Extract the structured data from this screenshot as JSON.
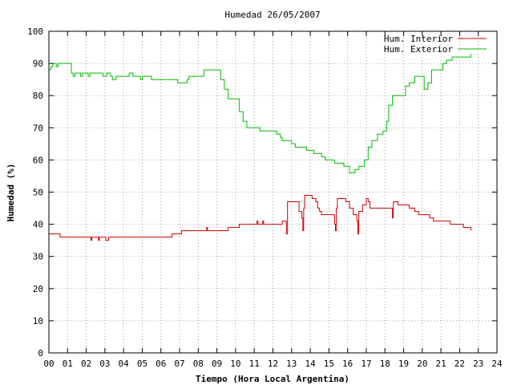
{
  "chart_data": {
    "type": "line",
    "title": "Humedad 26/05/2007",
    "xlabel": "Tiempo (Hora Local Argentina)",
    "ylabel": "Humedad (%)",
    "xlim": [
      0,
      24
    ],
    "ylim": [
      0,
      100
    ],
    "x_ticks": [
      "00",
      "01",
      "02",
      "03",
      "04",
      "05",
      "06",
      "07",
      "08",
      "09",
      "10",
      "11",
      "12",
      "13",
      "14",
      "15",
      "16",
      "17",
      "18",
      "19",
      "20",
      "21",
      "22",
      "23",
      "24"
    ],
    "y_ticks": [
      "0",
      "10",
      "20",
      "30",
      "40",
      "50",
      "60",
      "70",
      "80",
      "90",
      "100"
    ],
    "grid": true,
    "legend_position": "top-right",
    "colors": {
      "interior": "#cc0000",
      "exterior": "#00bb00"
    },
    "series": [
      {
        "name": "Hum. Interior",
        "points": [
          [
            0,
            37
          ],
          [
            0.55,
            37
          ],
          [
            0.6,
            36
          ],
          [
            2.2,
            36
          ],
          [
            2.25,
            35
          ],
          [
            2.3,
            36
          ],
          [
            2.6,
            36
          ],
          [
            2.65,
            35
          ],
          [
            2.7,
            36
          ],
          [
            3.0,
            36
          ],
          [
            3.05,
            35
          ],
          [
            3.15,
            35
          ],
          [
            3.2,
            36
          ],
          [
            6.5,
            36
          ],
          [
            6.6,
            37
          ],
          [
            7.0,
            37
          ],
          [
            7.1,
            38
          ],
          [
            8.4,
            38
          ],
          [
            8.45,
            39
          ],
          [
            8.5,
            38
          ],
          [
            9.5,
            38
          ],
          [
            9.6,
            39
          ],
          [
            10.1,
            39
          ],
          [
            10.2,
            40
          ],
          [
            11.1,
            40
          ],
          [
            11.15,
            41
          ],
          [
            11.2,
            40
          ],
          [
            11.4,
            40
          ],
          [
            11.45,
            41
          ],
          [
            11.5,
            40
          ],
          [
            12.4,
            40
          ],
          [
            12.5,
            41
          ],
          [
            12.7,
            41
          ],
          [
            12.72,
            37
          ],
          [
            12.75,
            37
          ],
          [
            12.78,
            47
          ],
          [
            13.2,
            47
          ],
          [
            13.4,
            44
          ],
          [
            13.55,
            42
          ],
          [
            13.6,
            38
          ],
          [
            13.65,
            45
          ],
          [
            13.7,
            49
          ],
          [
            14.1,
            48
          ],
          [
            14.3,
            47
          ],
          [
            14.4,
            45
          ],
          [
            14.5,
            44
          ],
          [
            14.6,
            43
          ],
          [
            15.25,
            43
          ],
          [
            15.3,
            40
          ],
          [
            15.35,
            38
          ],
          [
            15.4,
            45
          ],
          [
            15.45,
            48
          ],
          [
            15.9,
            47
          ],
          [
            16.1,
            45
          ],
          [
            16.3,
            43
          ],
          [
            16.5,
            41
          ],
          [
            16.55,
            37
          ],
          [
            16.6,
            44
          ],
          [
            16.8,
            46
          ],
          [
            17.0,
            48
          ],
          [
            17.1,
            47
          ],
          [
            17.2,
            45
          ],
          [
            18.3,
            45
          ],
          [
            18.4,
            42
          ],
          [
            18.45,
            47
          ],
          [
            18.6,
            47
          ],
          [
            18.7,
            46
          ],
          [
            19.2,
            46
          ],
          [
            19.3,
            45
          ],
          [
            19.6,
            44
          ],
          [
            19.8,
            43
          ],
          [
            20.3,
            43
          ],
          [
            20.4,
            42
          ],
          [
            20.6,
            41
          ],
          [
            21.4,
            41
          ],
          [
            21.5,
            40
          ],
          [
            22.1,
            40
          ],
          [
            22.2,
            39
          ],
          [
            22.5,
            39
          ],
          [
            22.6,
            38
          ]
        ]
      },
      {
        "name": "Hum. Exterior",
        "points": [
          [
            0,
            88
          ],
          [
            0.1,
            89
          ],
          [
            0.2,
            90
          ],
          [
            0.4,
            89
          ],
          [
            0.5,
            90
          ],
          [
            1.1,
            90
          ],
          [
            1.2,
            87
          ],
          [
            1.3,
            86
          ],
          [
            1.4,
            87
          ],
          [
            1.6,
            87
          ],
          [
            1.7,
            86
          ],
          [
            1.8,
            87
          ],
          [
            2.0,
            87
          ],
          [
            2.1,
            86
          ],
          [
            2.2,
            87
          ],
          [
            2.8,
            87
          ],
          [
            2.9,
            86
          ],
          [
            3.1,
            87
          ],
          [
            3.3,
            86
          ],
          [
            3.4,
            85
          ],
          [
            3.6,
            86
          ],
          [
            4.2,
            86
          ],
          [
            4.3,
            87
          ],
          [
            4.5,
            86
          ],
          [
            4.8,
            86
          ],
          [
            4.9,
            85
          ],
          [
            5.0,
            86
          ],
          [
            5.5,
            85
          ],
          [
            6.8,
            85
          ],
          [
            6.9,
            84
          ],
          [
            7.3,
            84
          ],
          [
            7.4,
            85
          ],
          [
            7.5,
            86
          ],
          [
            8.2,
            86
          ],
          [
            8.3,
            88
          ],
          [
            9.0,
            88
          ],
          [
            9.2,
            85
          ],
          [
            9.4,
            82
          ],
          [
            9.6,
            79
          ],
          [
            10.0,
            79
          ],
          [
            10.2,
            75
          ],
          [
            10.4,
            72
          ],
          [
            10.6,
            70
          ],
          [
            11.2,
            70
          ],
          [
            11.3,
            69
          ],
          [
            11.8,
            69
          ],
          [
            12.2,
            68
          ],
          [
            12.4,
            67
          ],
          [
            12.5,
            66
          ],
          [
            12.8,
            66
          ],
          [
            13.0,
            65
          ],
          [
            13.2,
            64
          ],
          [
            13.6,
            64
          ],
          [
            13.8,
            63
          ],
          [
            14.2,
            62
          ],
          [
            14.6,
            61
          ],
          [
            14.8,
            60
          ],
          [
            15.1,
            60
          ],
          [
            15.3,
            59
          ],
          [
            15.8,
            58
          ],
          [
            16.1,
            56
          ],
          [
            16.4,
            57
          ],
          [
            16.6,
            58
          ],
          [
            16.9,
            60
          ],
          [
            17.1,
            64
          ],
          [
            17.3,
            66
          ],
          [
            17.6,
            68
          ],
          [
            17.9,
            69
          ],
          [
            18.1,
            72
          ],
          [
            18.2,
            77
          ],
          [
            18.4,
            80
          ],
          [
            18.9,
            80
          ],
          [
            19.1,
            83
          ],
          [
            19.3,
            84
          ],
          [
            19.5,
            84
          ],
          [
            19.6,
            86
          ],
          [
            19.9,
            86
          ],
          [
            20.1,
            82
          ],
          [
            20.3,
            84
          ],
          [
            20.5,
            88
          ],
          [
            21.0,
            88
          ],
          [
            21.1,
            90
          ],
          [
            21.3,
            91
          ],
          [
            21.6,
            92
          ],
          [
            22.5,
            92
          ],
          [
            22.6,
            93
          ]
        ]
      }
    ]
  }
}
